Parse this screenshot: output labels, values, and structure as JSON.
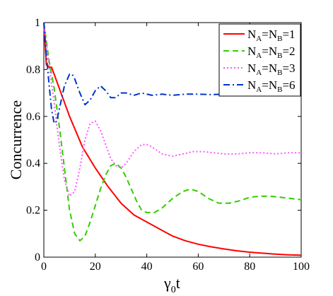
{
  "chart_data": {
    "type": "line",
    "xlabel": "γ0t",
    "xlabel_main": "γ",
    "xlabel_sub": "0",
    "xlabel_tail": "t",
    "ylabel": "Concurrence",
    "xlim": [
      0,
      100
    ],
    "ylim": [
      0,
      1
    ],
    "xticks": [
      "0",
      "20",
      "40",
      "60",
      "80",
      "100"
    ],
    "yticks": [
      "0",
      "0.2",
      "0.4",
      "0.6",
      "0.8",
      "1"
    ],
    "grid": false,
    "legend_position": "top-right",
    "series": [
      {
        "name": "NA=NB=1",
        "label_parts": [
          "N",
          "A",
          "=N",
          "B",
          "=1"
        ],
        "color": "#ff0000",
        "style": "solid",
        "x": [
          0,
          1,
          2,
          3,
          4,
          5,
          10,
          15,
          20,
          25,
          30,
          35,
          40,
          45,
          50,
          55,
          60,
          65,
          70,
          75,
          80,
          85,
          90,
          95,
          100
        ],
        "y": [
          1.0,
          0.82,
          0.81,
          0.81,
          0.78,
          0.75,
          0.6,
          0.47,
          0.38,
          0.3,
          0.23,
          0.18,
          0.15,
          0.12,
          0.09,
          0.07,
          0.055,
          0.044,
          0.035,
          0.027,
          0.021,
          0.017,
          0.013,
          0.01,
          0.008
        ]
      },
      {
        "name": "NA=NB=2",
        "label_parts": [
          "N",
          "A",
          "=N",
          "B",
          "=2"
        ],
        "color": "#33cc00",
        "style": "dashed",
        "x": [
          0,
          2,
          4,
          6,
          8,
          10,
          12,
          14,
          16,
          18,
          20,
          22,
          24,
          26,
          28,
          30,
          32,
          34,
          36,
          38,
          40,
          43,
          46,
          50,
          54,
          57,
          60,
          64,
          68,
          72,
          76,
          80,
          84,
          88,
          92,
          96,
          100
        ],
        "y": [
          1.0,
          0.84,
          0.72,
          0.56,
          0.38,
          0.2,
          0.1,
          0.07,
          0.09,
          0.15,
          0.22,
          0.29,
          0.35,
          0.39,
          0.4,
          0.38,
          0.34,
          0.29,
          0.24,
          0.2,
          0.19,
          0.19,
          0.21,
          0.25,
          0.28,
          0.29,
          0.28,
          0.25,
          0.23,
          0.23,
          0.24,
          0.255,
          0.26,
          0.26,
          0.255,
          0.25,
          0.245
        ]
      },
      {
        "name": "NA=NB=3",
        "label_parts": [
          "N",
          "A",
          "=N",
          "B",
          "=3"
        ],
        "color": "#ff55ff",
        "style": "dotted",
        "x": [
          0,
          2,
          4,
          6,
          8,
          10,
          12,
          14,
          16,
          18,
          20,
          22,
          24,
          26,
          28,
          30,
          32,
          35,
          38,
          40,
          42,
          46,
          50,
          54,
          58,
          62,
          66,
          70,
          75,
          80,
          85,
          90,
          95,
          100
        ],
        "y": [
          1.0,
          0.82,
          0.66,
          0.48,
          0.33,
          0.26,
          0.28,
          0.38,
          0.5,
          0.57,
          0.58,
          0.54,
          0.48,
          0.42,
          0.39,
          0.38,
          0.4,
          0.45,
          0.48,
          0.48,
          0.47,
          0.44,
          0.43,
          0.44,
          0.45,
          0.45,
          0.445,
          0.44,
          0.44,
          0.445,
          0.445,
          0.44,
          0.445,
          0.445
        ]
      },
      {
        "name": "NA=NB=6",
        "label_parts": [
          "N",
          "A",
          "=N",
          "B",
          "=6"
        ],
        "color": "#0033cc",
        "style": "dashdot",
        "x": [
          0,
          1,
          2,
          3,
          4,
          5,
          6,
          8,
          10,
          11,
          12,
          14,
          16,
          18,
          20,
          22,
          24,
          26,
          28,
          30,
          32,
          35,
          38,
          42,
          46,
          50,
          55,
          60,
          65,
          70,
          75,
          80,
          85,
          90,
          95,
          100
        ],
        "y": [
          1.0,
          0.86,
          0.74,
          0.63,
          0.57,
          0.58,
          0.63,
          0.73,
          0.78,
          0.78,
          0.76,
          0.7,
          0.65,
          0.67,
          0.71,
          0.73,
          0.71,
          0.68,
          0.68,
          0.7,
          0.7,
          0.69,
          0.7,
          0.69,
          0.695,
          0.69,
          0.695,
          0.695,
          0.693,
          0.695,
          0.695,
          0.693,
          0.694,
          0.694,
          0.694,
          0.694
        ]
      }
    ]
  }
}
